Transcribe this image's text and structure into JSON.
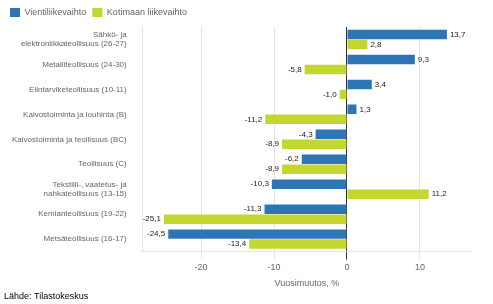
{
  "chart_data": {
    "type": "bar",
    "orientation": "horizontal",
    "categories": [
      "Metsäteollisuus (16-17)",
      "Kemianteollisuus (19-22)",
      "Tekstiili-, vaatetus- ja\nnahkateollisuus (13-15)",
      "Teollisuus (C)",
      "Kaivostoiminta ja teollisuus (BC)",
      "Kaivostoiminta ja louhinta (B)",
      "Elintarviketeollisuus (10-11)",
      "Metalliteollisuus (24-30)",
      "Sähkö- ja\nelektroniikkateollisuus (26-27)"
    ],
    "series": [
      {
        "name": "Vientiliikevaihto",
        "color": "#2E75B6",
        "values": [
          -24.5,
          -11.3,
          -10.3,
          -6.2,
          -4.3,
          1.3,
          3.4,
          9.3,
          13.7
        ],
        "value_labels": [
          "-24,5",
          "-11,3",
          "-10,3",
          "-6,2",
          "-4,3",
          "1,3",
          "3,4",
          "9,3",
          "13,7"
        ]
      },
      {
        "name": "Kotimaan liikevaihto",
        "color": "#C4D731",
        "values": [
          -13.4,
          -25.1,
          11.2,
          -8.9,
          -8.9,
          -11.2,
          -1.0,
          -5.8,
          2.8
        ],
        "value_labels": [
          "-13,4",
          "-25,1",
          "11,2",
          "-8,9",
          "-8,9",
          "-11,2",
          "-1,0",
          "-5,8",
          "2,8"
        ]
      }
    ],
    "xlabel": "Vuosimuutos, %",
    "xlim": [
      -28,
      17
    ],
    "xticks": [
      -20,
      -10,
      0,
      10
    ],
    "grid": true,
    "legend": "upper left",
    "data_labels": true,
    "annotations": [
      "Lähde: Tilastokeskus"
    ]
  }
}
